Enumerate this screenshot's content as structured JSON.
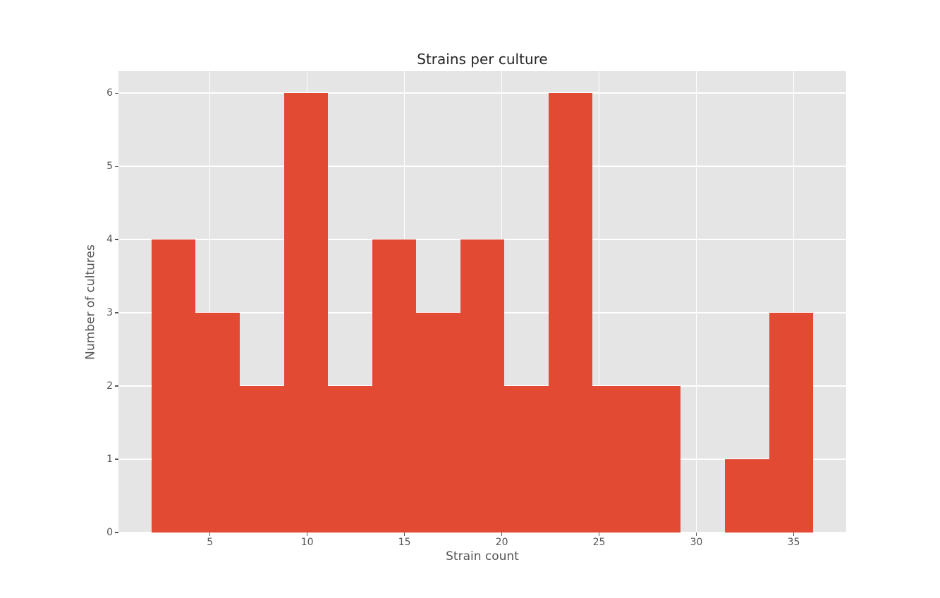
{
  "chart_data": {
    "type": "bar",
    "subtype": "histogram",
    "title": "Strains per culture",
    "xlabel": "Strain count",
    "ylabel": "Number of cultures",
    "bin_edges": [
      2.0,
      4.2667,
      6.5333,
      8.8,
      11.0667,
      13.3333,
      15.6,
      17.8667,
      20.1333,
      22.4,
      24.6667,
      26.9333,
      29.2,
      31.4667,
      33.7333,
      36.0
    ],
    "counts": [
      4,
      3,
      2,
      6,
      2,
      4,
      3,
      4,
      2,
      6,
      2,
      2,
      0,
      1,
      3
    ],
    "total_cultures": 44,
    "bin_width": 2.2667,
    "xticks": [
      5,
      10,
      15,
      20,
      25,
      30,
      35
    ],
    "xtick_labels": [
      "5",
      "10",
      "15",
      "20",
      "25",
      "30",
      "35"
    ],
    "yticks": [
      0,
      1,
      2,
      3,
      4,
      5,
      6
    ],
    "ytick_labels": [
      "0",
      "1",
      "2",
      "3",
      "4",
      "5",
      "6"
    ],
    "xlim": [
      0.3,
      37.7
    ],
    "ylim": [
      0,
      6.3
    ],
    "grid": true,
    "legend": false,
    "colors": {
      "bar": "#e24a33",
      "plot_background": "#e5e5e5",
      "figure_background": "#ffffff",
      "grid": "#ffffff",
      "tick_text": "#555555",
      "axis_label_text": "#555555",
      "title_text": "#262626"
    }
  }
}
